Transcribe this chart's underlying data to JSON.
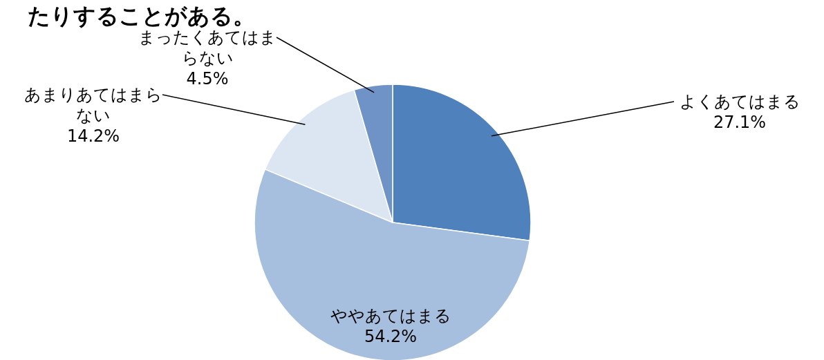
{
  "chart_data": {
    "type": "pie",
    "title": "たりすることがある。",
    "categories": [
      "よくあてはまる",
      "ややあてはまる",
      "あまりあてはまらない",
      "まったくあてはまらない"
    ],
    "values": [
      27.1,
      54.2,
      14.2,
      4.5
    ],
    "colors": [
      "#4f81bd",
      "#a7bfde",
      "#dce6f2",
      "#6f93c6"
    ],
    "value_labels": [
      "27.1%",
      "54.2%",
      "14.2%",
      "4.5%"
    ]
  }
}
